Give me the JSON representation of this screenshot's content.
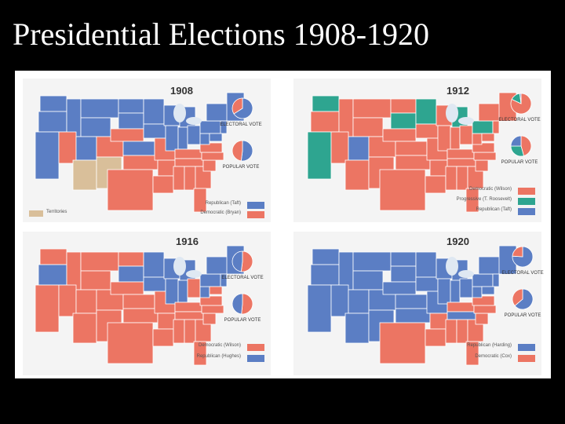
{
  "slide": {
    "title": "Presidential Elections 1908-1920"
  },
  "colors": {
    "republican": "#5b7ec4",
    "democratic": "#ec7563",
    "progressive": "#2ea590",
    "territory": "#d9bf9a",
    "land_border": "#ffffff",
    "water": "#ffffff"
  },
  "maps": [
    {
      "year": "1908",
      "electoral_vote_label": "ELECTORAL VOTE",
      "popular_vote_label": "POPULAR VOTE",
      "territory_label": "Territories",
      "legend": [
        {
          "label": "Republican (Taft)",
          "party": "republican"
        },
        {
          "label": "Democratic (Bryan)",
          "party": "democratic"
        }
      ],
      "electoral_share": {
        "republican": 0.66,
        "democratic": 0.34
      },
      "popular_share": {
        "republican": 0.52,
        "democratic": 0.48
      }
    },
    {
      "year": "1912",
      "electoral_vote_label": "ELECTORAL VOTE",
      "popular_vote_label": "POPULAR VOTE",
      "legend": [
        {
          "label": "Democratic (Wilson)",
          "party": "democratic"
        },
        {
          "label": "Progressive (T. Roosevelt)",
          "party": "progressive"
        },
        {
          "label": "Republican (Taft)",
          "party": "republican"
        }
      ],
      "electoral_share": {
        "democratic": 0.82,
        "progressive": 0.16,
        "republican": 0.02
      },
      "popular_share": {
        "democratic": 0.42,
        "progressive": 0.27,
        "republican": 0.23
      }
    },
    {
      "year": "1916",
      "electoral_vote_label": "ELECTORAL VOTE",
      "popular_vote_label": "POPULAR VOTE",
      "legend": [
        {
          "label": "Democratic (Wilson)",
          "party": "democratic"
        },
        {
          "label": "Republican (Hughes)",
          "party": "republican"
        }
      ],
      "electoral_share": {
        "democratic": 0.52,
        "republican": 0.48
      },
      "popular_share": {
        "democratic": 0.49,
        "republican": 0.46
      }
    },
    {
      "year": "1920",
      "electoral_vote_label": "ELECTORAL VOTE",
      "popular_vote_label": "POPULAR VOTE",
      "legend": [
        {
          "label": "Republican (Harding)",
          "party": "republican"
        },
        {
          "label": "Democratic (Cox)",
          "party": "democratic"
        }
      ],
      "electoral_share": {
        "republican": 0.76,
        "democratic": 0.24
      },
      "popular_share": {
        "republican": 0.6,
        "democratic": 0.34
      }
    }
  ]
}
